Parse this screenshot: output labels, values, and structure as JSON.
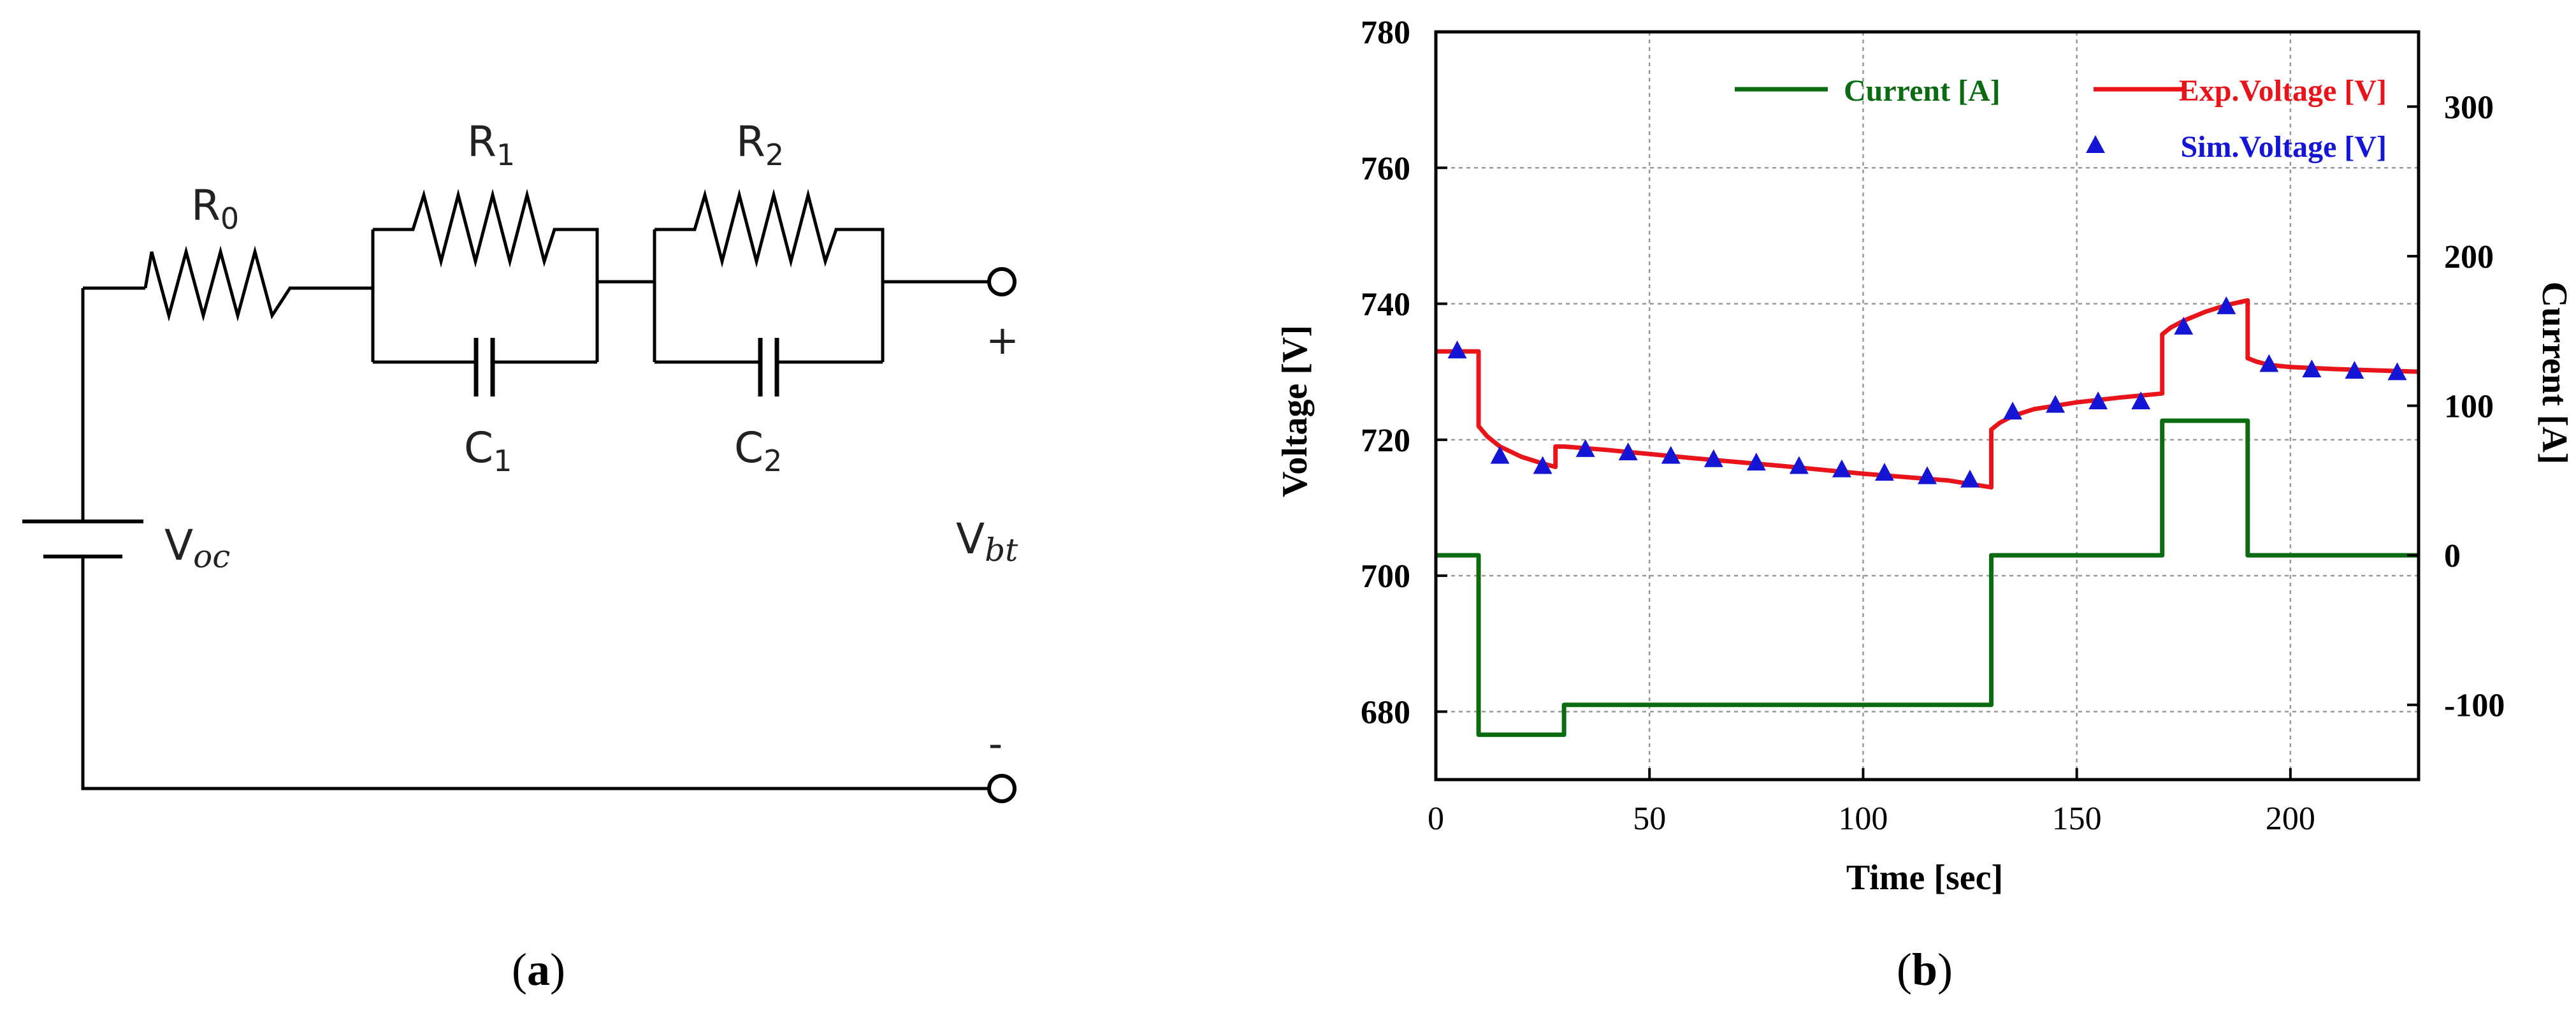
{
  "panel_a": {
    "label": "a",
    "components": {
      "r0": {
        "base": "R",
        "sub": "0"
      },
      "r1": {
        "base": "R",
        "sub": "1"
      },
      "r2": {
        "base": "R",
        "sub": "2"
      },
      "c1": {
        "base": "C",
        "sub": "1"
      },
      "c2": {
        "base": "C",
        "sub": "2"
      },
      "voc": {
        "base": "V",
        "sub": "oc"
      },
      "vbt": {
        "base": "V",
        "sub": "bt"
      }
    },
    "terminal_plus": "+",
    "terminal_minus": "-"
  },
  "panel_b": {
    "label": "b"
  },
  "chart_data": {
    "type": "line",
    "xlabel": "Time [sec]",
    "ylabel": "Voltage [V]",
    "y2label": "Current [A]",
    "xlim": [
      0,
      230
    ],
    "ylim": [
      670,
      780
    ],
    "y2lim": [
      -150,
      350
    ],
    "x_ticks": [
      0,
      50,
      100,
      150,
      200
    ],
    "y_ticks": [
      680,
      700,
      720,
      740,
      760,
      780
    ],
    "y2_ticks": [
      -100,
      0,
      100,
      200,
      300
    ],
    "x_gridlines": [
      50,
      100,
      150,
      200
    ],
    "y_gridlines": [
      680,
      700,
      720,
      740,
      760
    ],
    "grid": true,
    "legend": [
      {
        "name": "Current [A]",
        "color": "#0a6b12",
        "marker": "line"
      },
      {
        "name": "Exp.Voltage [V]",
        "color": "#e8141a",
        "marker": "line"
      },
      {
        "name": "Sim.Voltage [V]",
        "color": "#1515d6",
        "marker": "triangle"
      }
    ],
    "series": [
      {
        "name": "Current [A]",
        "axis": "right",
        "color": "#0a6b12",
        "x": [
          0,
          10,
          10,
          30,
          30,
          130,
          130,
          170,
          170,
          190,
          190,
          230
        ],
        "y": [
          0,
          0,
          -120,
          -120,
          -100,
          -100,
          0,
          0,
          90,
          90,
          0,
          0
        ]
      },
      {
        "name": "Exp.Voltage [V]",
        "axis": "left",
        "color": "#e8141a",
        "x": [
          0,
          10,
          10,
          12,
          15,
          20,
          25,
          28,
          28,
          30,
          40,
          60,
          80,
          100,
          120,
          130,
          130,
          132,
          135,
          140,
          150,
          160,
          170,
          170,
          172,
          175,
          180,
          185,
          190,
          190,
          192,
          195,
          200,
          210,
          230
        ],
        "y": [
          733,
          733,
          722,
          720.5,
          719,
          717.5,
          716.5,
          716,
          719,
          719,
          718.5,
          717.3,
          716.2,
          715,
          714,
          713,
          721.5,
          722.5,
          723.5,
          724.5,
          725.5,
          726.2,
          726.8,
          735.5,
          736.5,
          737.5,
          738.8,
          739.8,
          740.5,
          732,
          731.5,
          731,
          730.7,
          730.4,
          730
        ]
      },
      {
        "name": "Sim.Voltage [V]",
        "axis": "left",
        "color": "#1515d6",
        "x": [
          5,
          15,
          25,
          35,
          45,
          55,
          65,
          75,
          85,
          95,
          105,
          115,
          125,
          135,
          145,
          155,
          165,
          175,
          185,
          195,
          205,
          215,
          225
        ],
        "y": [
          733,
          717.5,
          716,
          718.5,
          718,
          717.5,
          717,
          716.5,
          716,
          715.5,
          715,
          714.5,
          714,
          724,
          725,
          725.5,
          725.5,
          736.5,
          739.5,
          731,
          730.2,
          730,
          729.8
        ]
      }
    ]
  }
}
